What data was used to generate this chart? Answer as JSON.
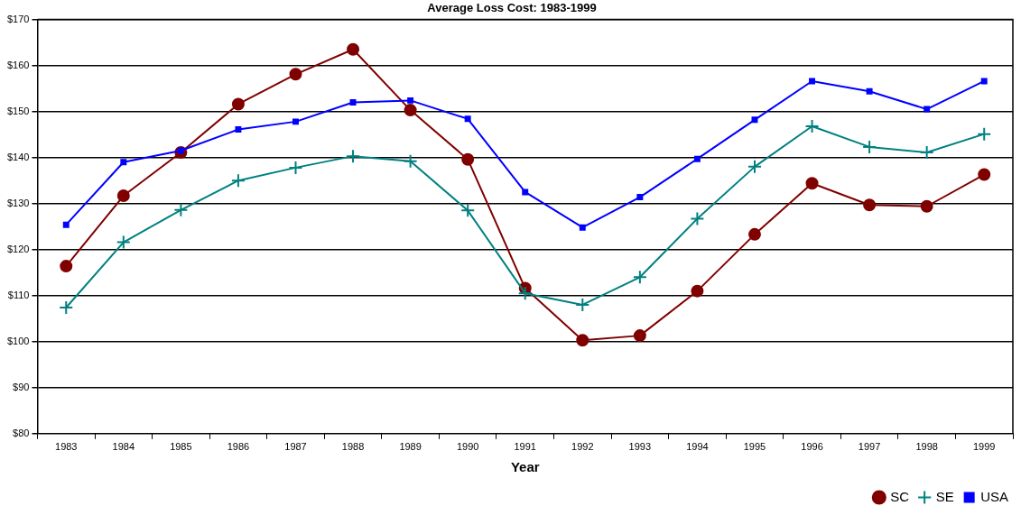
{
  "chart_data": {
    "type": "line",
    "title": "Average Loss Cost: 1983-1999",
    "xlabel": "Year",
    "categories": [
      "1983",
      "1984",
      "1985",
      "1986",
      "1987",
      "1988",
      "1989",
      "1990",
      "1991",
      "1992",
      "1993",
      "1994",
      "1995",
      "1996",
      "1997",
      "1998",
      "1999"
    ],
    "series": [
      {
        "name": "SC",
        "color": "#800000",
        "marker": "circle",
        "values": [
          116.4,
          131.7,
          141.1,
          151.6,
          158.1,
          163.5,
          150.3,
          139.6,
          111.6,
          100.3,
          101.3,
          111,
          123.3,
          134.4,
          129.7,
          129.4,
          136.3
        ]
      },
      {
        "name": "SE",
        "color": "#008080",
        "marker": "cross",
        "values": [
          107.4,
          121.6,
          128.6,
          135,
          137.8,
          140.3,
          139.2,
          128.5,
          110.5,
          108,
          114,
          126.7,
          138,
          146.8,
          142.3,
          141.1,
          145.1
        ]
      },
      {
        "name": "USA",
        "color": "#0000ff",
        "marker": "square",
        "values": [
          125.4,
          139,
          141.5,
          146.1,
          147.8,
          152,
          152.4,
          148.4,
          132.5,
          124.8,
          131.4,
          139.7,
          148.2,
          156.6,
          154.4,
          150.5,
          156.6
        ]
      }
    ],
    "ylim": [
      80,
      170
    ],
    "yticks": [
      {
        "value": 80,
        "label": "$80"
      },
      {
        "value": 90,
        "label": "$90"
      },
      {
        "value": 100,
        "label": "$100"
      },
      {
        "value": 110,
        "label": "$110"
      },
      {
        "value": 120,
        "label": "$120"
      },
      {
        "value": 130,
        "label": "$130"
      },
      {
        "value": 140,
        "label": "$140"
      },
      {
        "value": 150,
        "label": "$150"
      },
      {
        "value": 160,
        "label": "$160"
      },
      {
        "value": 170,
        "label": "$170"
      }
    ],
    "grid": "y",
    "legend": "bottom right",
    "line_style": "solid"
  }
}
